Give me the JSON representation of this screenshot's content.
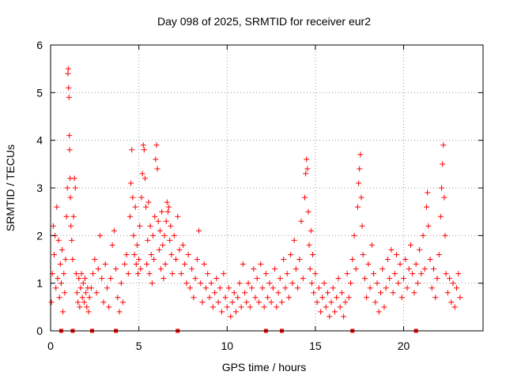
{
  "chart_data": {
    "type": "scatter",
    "title": "Day 098 of 2025, SRMTID for receiver eur2",
    "xlabel": "GPS time / hours",
    "ylabel": "SRMTID / TECUs",
    "xlim": [
      0,
      24.5
    ],
    "ylim": [
      0,
      6
    ],
    "xticks": [
      0,
      5,
      10,
      15,
      20
    ],
    "yticks": [
      0,
      1,
      2,
      3,
      4,
      5,
      6
    ],
    "grid": true,
    "marker": "+",
    "series_color": "#ff0000",
    "zero_markers_x": [
      0.6,
      1.25,
      2.35,
      3.7,
      7.2,
      12.2,
      13.1,
      17.1,
      20.7
    ],
    "series": [
      {
        "name": "SRMTID",
        "points": [
          [
            0.05,
            0.6
          ],
          [
            0.1,
            1.2
          ],
          [
            0.15,
            2.2
          ],
          [
            0.2,
            1.6
          ],
          [
            0.25,
            2.0
          ],
          [
            0.3,
            0.9
          ],
          [
            0.35,
            2.6
          ],
          [
            0.4,
            1.1
          ],
          [
            0.45,
            1.9
          ],
          [
            0.5,
            0.7
          ],
          [
            0.55,
            1.4
          ],
          [
            0.6,
            1.0
          ],
          [
            0.65,
            1.7
          ],
          [
            0.7,
            0.4
          ],
          [
            0.75,
            1.2
          ],
          [
            0.8,
            0.8
          ],
          [
            0.85,
            1.5
          ],
          [
            0.9,
            2.4
          ],
          [
            0.95,
            3.0
          ],
          [
            0.98,
            5.4
          ],
          [
            1.0,
            5.5
          ],
          [
            1.02,
            5.1
          ],
          [
            1.04,
            4.9
          ],
          [
            1.06,
            4.1
          ],
          [
            1.08,
            3.8
          ],
          [
            1.1,
            3.2
          ],
          [
            1.12,
            2.8
          ],
          [
            1.15,
            2.2
          ],
          [
            1.2,
            1.9
          ],
          [
            1.25,
            1.5
          ],
          [
            1.3,
            2.4
          ],
          [
            1.35,
            3.2
          ],
          [
            1.4,
            3.0
          ],
          [
            1.45,
            1.2
          ],
          [
            1.5,
            0.8
          ],
          [
            1.55,
            0.6
          ],
          [
            1.6,
            1.1
          ],
          [
            1.65,
            0.5
          ],
          [
            1.7,
            0.9
          ],
          [
            1.75,
            1.2
          ],
          [
            1.8,
            0.7
          ],
          [
            1.85,
            1.0
          ],
          [
            1.9,
            0.6
          ],
          [
            1.95,
            1.1
          ],
          [
            2.0,
            0.8
          ],
          [
            2.05,
            0.5
          ],
          [
            2.1,
            0.9
          ],
          [
            2.15,
            0.4
          ],
          [
            2.2,
            0.7
          ],
          [
            2.3,
            0.9
          ],
          [
            2.4,
            1.2
          ],
          [
            2.5,
            1.5
          ],
          [
            2.6,
            0.8
          ],
          [
            2.7,
            1.3
          ],
          [
            2.8,
            2.0
          ],
          [
            2.9,
            1.1
          ],
          [
            3.0,
            0.6
          ],
          [
            3.1,
            1.4
          ],
          [
            3.2,
            0.9
          ],
          [
            3.3,
            0.5
          ],
          [
            3.4,
            1.1
          ],
          [
            3.5,
            1.8
          ],
          [
            3.6,
            2.1
          ],
          [
            3.7,
            1.3
          ],
          [
            3.8,
            0.7
          ],
          [
            3.9,
            0.4
          ],
          [
            4.0,
            1.0
          ],
          [
            4.1,
            0.6
          ],
          [
            4.2,
            1.4
          ],
          [
            4.3,
            1.6
          ],
          [
            4.4,
            1.2
          ],
          [
            4.5,
            2.4
          ],
          [
            4.55,
            3.1
          ],
          [
            4.6,
            3.8
          ],
          [
            4.65,
            2.8
          ],
          [
            4.7,
            2.0
          ],
          [
            4.75,
            1.6
          ],
          [
            4.8,
            2.6
          ],
          [
            4.85,
            1.4
          ],
          [
            4.9,
            1.8
          ],
          [
            4.95,
            1.2
          ],
          [
            5.0,
            1.5
          ],
          [
            5.05,
            2.2
          ],
          [
            5.1,
            1.3
          ],
          [
            5.15,
            2.8
          ],
          [
            5.2,
            3.3
          ],
          [
            5.25,
            3.9
          ],
          [
            5.3,
            3.8
          ],
          [
            5.35,
            3.2
          ],
          [
            5.4,
            2.6
          ],
          [
            5.45,
            1.4
          ],
          [
            5.5,
            1.9
          ],
          [
            5.55,
            2.7
          ],
          [
            5.6,
            1.2
          ],
          [
            5.65,
            2.2
          ],
          [
            5.7,
            1.6
          ],
          [
            5.75,
            1.0
          ],
          [
            5.8,
            2.0
          ],
          [
            5.85,
            1.5
          ],
          [
            5.9,
            2.4
          ],
          [
            5.95,
            3.6
          ],
          [
            6.0,
            3.9
          ],
          [
            6.05,
            3.4
          ],
          [
            6.1,
            2.3
          ],
          [
            6.15,
            1.7
          ],
          [
            6.2,
            2.1
          ],
          [
            6.25,
            1.3
          ],
          [
            6.3,
            2.5
          ],
          [
            6.35,
            1.8
          ],
          [
            6.4,
            1.1
          ],
          [
            6.45,
            2.0
          ],
          [
            6.5,
            1.4
          ],
          [
            6.55,
            2.3
          ],
          [
            6.6,
            2.7
          ],
          [
            6.65,
            2.5
          ],
          [
            6.7,
            2.6
          ],
          [
            6.75,
            1.9
          ],
          [
            6.8,
            2.2
          ],
          [
            6.85,
            1.6
          ],
          [
            6.9,
            1.2
          ],
          [
            7.0,
            2.0
          ],
          [
            7.1,
            1.5
          ],
          [
            7.2,
            2.4
          ],
          [
            7.3,
            1.7
          ],
          [
            7.4,
            1.2
          ],
          [
            7.5,
            1.8
          ],
          [
            7.6,
            1.4
          ],
          [
            7.7,
            1.0
          ],
          [
            7.8,
            1.6
          ],
          [
            7.9,
            0.9
          ],
          [
            8.0,
            1.3
          ],
          [
            8.1,
            0.7
          ],
          [
            8.2,
            1.1
          ],
          [
            8.3,
            1.5
          ],
          [
            8.4,
            2.1
          ],
          [
            8.5,
            1.0
          ],
          [
            8.6,
            0.6
          ],
          [
            8.7,
            1.4
          ],
          [
            8.8,
            0.9
          ],
          [
            8.9,
            1.2
          ],
          [
            9.0,
            0.7
          ],
          [
            9.1,
            1.0
          ],
          [
            9.2,
            0.5
          ],
          [
            9.3,
            0.8
          ],
          [
            9.4,
            1.1
          ],
          [
            9.5,
            0.6
          ],
          [
            9.6,
            0.9
          ],
          [
            9.7,
            0.4
          ],
          [
            9.8,
            1.2
          ],
          [
            9.9,
            0.7
          ],
          [
            10.0,
            0.5
          ],
          [
            10.1,
            0.9
          ],
          [
            10.2,
            0.3
          ],
          [
            10.3,
            0.6
          ],
          [
            10.4,
            0.8
          ],
          [
            10.5,
            0.4
          ],
          [
            10.6,
            0.7
          ],
          [
            10.7,
            1.0
          ],
          [
            10.8,
            0.5
          ],
          [
            10.9,
            1.4
          ],
          [
            11.0,
            0.8
          ],
          [
            11.1,
            0.6
          ],
          [
            11.2,
            1.0
          ],
          [
            11.3,
            0.5
          ],
          [
            11.4,
            0.9
          ],
          [
            11.5,
            1.3
          ],
          [
            11.6,
            0.7
          ],
          [
            11.7,
            1.1
          ],
          [
            11.8,
            0.6
          ],
          [
            11.9,
            1.4
          ],
          [
            12.0,
            0.9
          ],
          [
            12.1,
            0.5
          ],
          [
            12.2,
            1.2
          ],
          [
            12.3,
            0.7
          ],
          [
            12.4,
            1.0
          ],
          [
            12.5,
            0.6
          ],
          [
            12.6,
            0.9
          ],
          [
            12.7,
            1.3
          ],
          [
            12.8,
            0.5
          ],
          [
            12.9,
            0.8
          ],
          [
            13.0,
            1.1
          ],
          [
            13.1,
            0.6
          ],
          [
            13.2,
            1.5
          ],
          [
            13.3,
            0.9
          ],
          [
            13.4,
            1.2
          ],
          [
            13.5,
            0.7
          ],
          [
            13.6,
            1.6
          ],
          [
            13.7,
            1.0
          ],
          [
            13.8,
            1.9
          ],
          [
            13.9,
            1.3
          ],
          [
            14.0,
            0.9
          ],
          [
            14.1,
            1.5
          ],
          [
            14.2,
            2.3
          ],
          [
            14.3,
            1.1
          ],
          [
            14.4,
            2.8
          ],
          [
            14.45,
            3.3
          ],
          [
            14.5,
            3.6
          ],
          [
            14.55,
            3.4
          ],
          [
            14.6,
            2.5
          ],
          [
            14.65,
            1.8
          ],
          [
            14.7,
            1.3
          ],
          [
            14.75,
            2.1
          ],
          [
            14.8,
            1.0
          ],
          [
            14.85,
            1.6
          ],
          [
            14.9,
            0.8
          ],
          [
            15.0,
            1.2
          ],
          [
            15.1,
            0.6
          ],
          [
            15.2,
            0.9
          ],
          [
            15.3,
            0.4
          ],
          [
            15.4,
            0.7
          ],
          [
            15.5,
            1.0
          ],
          [
            15.6,
            0.5
          ],
          [
            15.7,
            0.8
          ],
          [
            15.8,
            0.3
          ],
          [
            15.9,
            0.6
          ],
          [
            16.0,
            0.9
          ],
          [
            16.1,
            0.4
          ],
          [
            16.2,
            0.7
          ],
          [
            16.3,
            1.1
          ],
          [
            16.4,
            0.5
          ],
          [
            16.5,
            0.8
          ],
          [
            16.6,
            0.3
          ],
          [
            16.7,
            0.6
          ],
          [
            16.8,
            1.2
          ],
          [
            16.9,
            0.7
          ],
          [
            17.0,
            1.0
          ],
          [
            17.1,
            1.5
          ],
          [
            17.2,
            2.0
          ],
          [
            17.3,
            1.3
          ],
          [
            17.4,
            2.6
          ],
          [
            17.45,
            3.1
          ],
          [
            17.5,
            3.4
          ],
          [
            17.55,
            3.7
          ],
          [
            17.6,
            2.8
          ],
          [
            17.65,
            2.2
          ],
          [
            17.7,
            1.6
          ],
          [
            17.8,
            1.1
          ],
          [
            17.9,
            0.7
          ],
          [
            18.0,
            1.4
          ],
          [
            18.1,
            0.9
          ],
          [
            18.2,
            1.8
          ],
          [
            18.3,
            1.2
          ],
          [
            18.4,
            0.6
          ],
          [
            18.5,
            1.0
          ],
          [
            18.6,
            0.4
          ],
          [
            18.7,
            0.8
          ],
          [
            18.8,
            1.3
          ],
          [
            18.9,
            0.5
          ],
          [
            19.0,
            0.9
          ],
          [
            19.1,
            1.5
          ],
          [
            19.2,
            1.1
          ],
          [
            19.3,
            1.7
          ],
          [
            19.4,
            0.8
          ],
          [
            19.5,
            1.2
          ],
          [
            19.6,
            1.6
          ],
          [
            19.7,
            1.0
          ],
          [
            19.8,
            1.4
          ],
          [
            19.9,
            0.7
          ],
          [
            20.0,
            1.1
          ],
          [
            20.1,
            1.5
          ],
          [
            20.2,
            0.9
          ],
          [
            20.3,
            1.3
          ],
          [
            20.4,
            1.8
          ],
          [
            20.5,
            1.2
          ],
          [
            20.6,
            0.8
          ],
          [
            20.7,
            1.4
          ],
          [
            20.8,
            1.0
          ],
          [
            20.9,
            1.7
          ],
          [
            21.0,
            1.2
          ],
          [
            21.1,
            2.0
          ],
          [
            21.2,
            1.3
          ],
          [
            21.3,
            2.6
          ],
          [
            21.35,
            2.9
          ],
          [
            21.4,
            2.2
          ],
          [
            21.5,
            1.5
          ],
          [
            21.6,
            0.9
          ],
          [
            21.7,
            1.3
          ],
          [
            21.8,
            0.7
          ],
          [
            21.9,
            1.1
          ],
          [
            22.0,
            1.6
          ],
          [
            22.1,
            2.4
          ],
          [
            22.15,
            3.0
          ],
          [
            22.2,
            3.5
          ],
          [
            22.25,
            3.9
          ],
          [
            22.3,
            2.8
          ],
          [
            22.35,
            2.0
          ],
          [
            22.4,
            1.2
          ],
          [
            22.5,
            0.8
          ],
          [
            22.6,
            1.1
          ],
          [
            22.7,
            0.6
          ],
          [
            22.8,
            1.0
          ],
          [
            22.9,
            0.5
          ],
          [
            23.0,
            0.9
          ],
          [
            23.1,
            1.2
          ],
          [
            23.2,
            0.7
          ]
        ]
      }
    ]
  }
}
